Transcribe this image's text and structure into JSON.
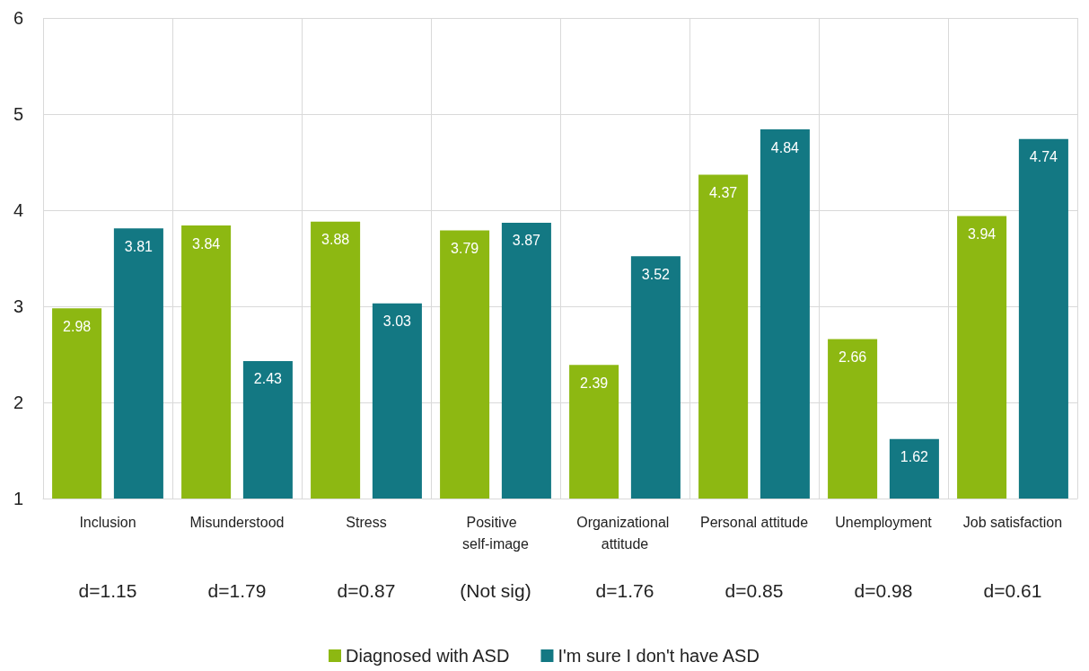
{
  "chart_data": {
    "type": "bar",
    "categories": [
      "Inclusion",
      "Misunderstood",
      "Stress",
      "Positive  self-image",
      "Organizational attitude",
      "Personal attitude",
      "Unemployment",
      "Job satisfaction"
    ],
    "series": [
      {
        "name": "Diagnosed with ASD",
        "color": "#8db812",
        "values": [
          2.98,
          3.84,
          3.88,
          3.79,
          2.39,
          4.37,
          2.66,
          3.94
        ]
      },
      {
        "name": "I'm sure I don't have ASD",
        "color": "#137883",
        "values": [
          3.81,
          2.43,
          3.03,
          3.87,
          3.52,
          4.84,
          1.62,
          4.74
        ]
      }
    ],
    "ylim": [
      1,
      6
    ],
    "yticks": [
      1,
      2,
      3,
      4,
      5,
      6
    ],
    "grid": true,
    "legend": "bottom",
    "data_labels": true,
    "annotations": [
      "d=1.15",
      "d=1.79",
      "d=0.87",
      "(Not sig)",
      "d=1.76",
      "d=0.85",
      "d=0.98",
      "d=0.61"
    ]
  }
}
